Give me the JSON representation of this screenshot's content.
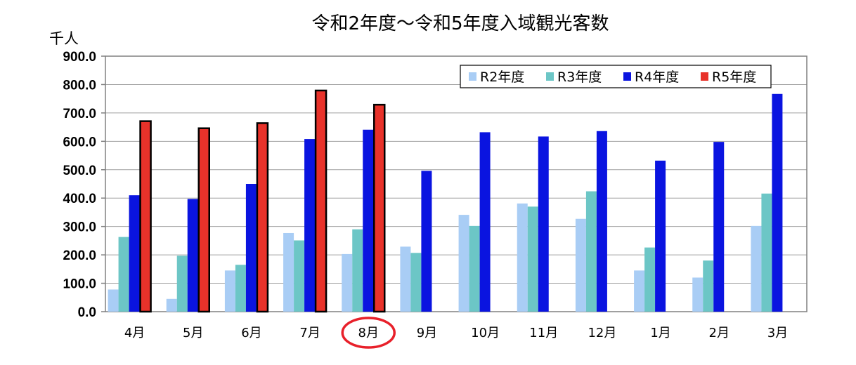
{
  "chart_data": {
    "type": "bar",
    "title": "令和2年度～令和5年度入域観光客数",
    "ylabel": "千人",
    "xlabel": "",
    "ylim": [
      0,
      900
    ],
    "yticks": [
      "0.0",
      "100.0",
      "200.0",
      "300.0",
      "400.0",
      "500.0",
      "600.0",
      "700.0",
      "800.0",
      "900.0"
    ],
    "categories": [
      "4月",
      "5月",
      "6月",
      "7月",
      "8月",
      "9月",
      "10月",
      "11月",
      "12月",
      "1月",
      "2月",
      "3月"
    ],
    "grid": true,
    "legend_position": "top-right",
    "highlighted_category": "8月",
    "highlight_color": "#e8202a",
    "series": [
      {
        "name": "R2年度",
        "color": "#a9cdf5",
        "values": [
          78,
          45,
          145,
          277,
          203,
          229,
          341,
          381,
          327,
          145,
          120,
          302
        ]
      },
      {
        "name": "R3年度",
        "color": "#6cc6c6",
        "values": [
          263,
          197,
          165,
          251,
          290,
          207,
          302,
          370,
          424,
          226,
          180,
          416
        ]
      },
      {
        "name": "R4年度",
        "color": "#0a14e0",
        "values": [
          410,
          397,
          450,
          608,
          641,
          496,
          632,
          617,
          636,
          532,
          598,
          767
        ]
      },
      {
        "name": "R5年度",
        "color": "#e8322a",
        "values": [
          671,
          646,
          664,
          779,
          729,
          null,
          null,
          null,
          null,
          null,
          null,
          null
        ]
      }
    ]
  }
}
